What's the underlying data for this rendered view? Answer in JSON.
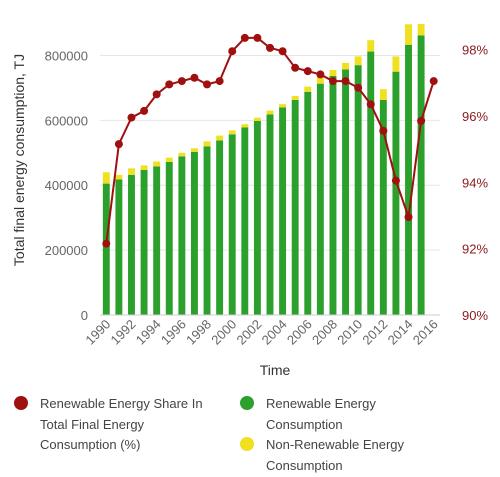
{
  "chart_data": {
    "type": "bar",
    "x_label": "Time",
    "y_label_left": "Total final energy consumption, TJ",
    "left_ticks": [
      "0",
      "200000",
      "400000",
      "600000",
      "800000"
    ],
    "right_ticks": [
      "90%",
      "92%",
      "94%",
      "96%",
      "98%"
    ],
    "x_tick_labels": [
      "1990",
      "1992",
      "1994",
      "1996",
      "1998",
      "2000",
      "2002",
      "2004",
      "2006",
      "2008",
      "2010",
      "2012",
      "2014",
      "2016"
    ],
    "ylim_left": [
      0,
      900000
    ],
    "ylim_right": [
      90,
      98.8
    ],
    "years": [
      1990,
      1991,
      1992,
      1993,
      1994,
      1995,
      1996,
      1997,
      1998,
      1999,
      2000,
      2001,
      2002,
      2003,
      2004,
      2005,
      2006,
      2007,
      2008,
      2009,
      2010,
      2011,
      2012,
      2013,
      2014,
      2015,
      2016
    ],
    "series": [
      {
        "name": "Renewable Energy Consumption",
        "kind": "bar",
        "color": "#2ca02c",
        "values": [
          405000,
          418000,
          432000,
          447000,
          458000,
          472000,
          489000,
          503000,
          520000,
          538000,
          557000,
          578000,
          598000,
          618000,
          640000,
          663000,
          688000,
          713000,
          737000,
          757000,
          770000,
          812000,
          663000,
          750000,
          833000,
          862000,
          null
        ]
      },
      {
        "name": "Non-Renewable Energy Consumption",
        "kind": "bar",
        "color": "#f0e020",
        "values": [
          35000,
          14000,
          20000,
          14000,
          15000,
          13000,
          11000,
          11000,
          15000,
          15000,
          12000,
          10000,
          10000,
          12000,
          10000,
          12000,
          16000,
          20000,
          18000,
          20000,
          27000,
          35000,
          33000,
          47000,
          63000,
          35000,
          null
        ]
      },
      {
        "name": "Renewable Energy Share In Total Final Energy Consumption (%)",
        "kind": "line",
        "color": "#a01010",
        "values": [
          92.15,
          95.15,
          95.95,
          96.15,
          96.65,
          96.95,
          97.05,
          97.15,
          96.95,
          97.05,
          97.95,
          98.35,
          98.35,
          98.05,
          97.95,
          97.45,
          97.35,
          97.25,
          97.05,
          97.05,
          96.85,
          96.35,
          95.55,
          94.05,
          92.95,
          95.85,
          97.05
        ]
      }
    ],
    "legend": {
      "position": "bottom",
      "items": [
        {
          "label": "Renewable Energy Share In Total Final Energy Consumption (%)",
          "lines": [
            "Renewable Energy Share In",
            "Total Final Energy",
            "Consumption (%)"
          ],
          "color": "#a01010"
        },
        {
          "label": "Renewable Energy Consumption",
          "lines": [
            "Renewable Energy",
            "Consumption"
          ],
          "color": "#2ca02c"
        },
        {
          "label": "Non-Renewable Energy Consumption",
          "lines": [
            "Non-Renewable Energy",
            "Consumption"
          ],
          "color": "#f0e020"
        }
      ]
    },
    "grid": true
  }
}
